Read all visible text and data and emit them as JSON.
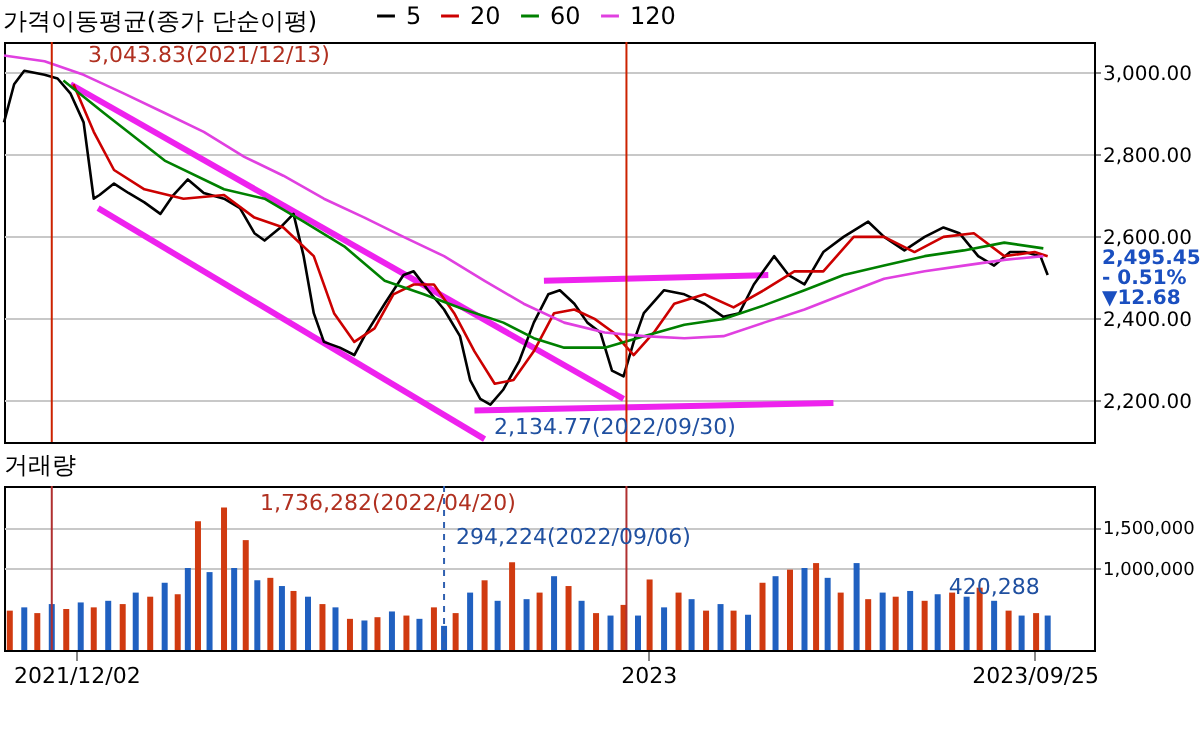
{
  "chart_data": [
    {
      "type": "line",
      "title": "가격이동평균(종가 단순이평)",
      "xlim": [
        "2021-10-13",
        "2023-11-05"
      ],
      "ylim": [
        2100,
        3075
      ],
      "yticks": [
        {
          "value": 2200,
          "label": "2,200.00"
        },
        {
          "value": 2400,
          "label": "2,400.00"
        },
        {
          "value": 2600,
          "label": "2,600.00"
        },
        {
          "value": 2800,
          "label": "2,800.00"
        },
        {
          "value": 3000,
          "label": "3,000.00"
        }
      ],
      "grid": "y",
      "legend": "top left",
      "tick_labels": "y",
      "ref_lines": [
        {
          "axis": "x",
          "value": "2021-11-15",
          "color": "#cc2200"
        },
        {
          "axis": "x",
          "value": "2022-12-17",
          "color": "#cc2200"
        }
      ],
      "annotations": [
        "3,043.83(2021/12/13)",
        "2,134.77(2022/09/30)",
        "2,495.45",
        "- 0.51%",
        "▼12.68"
      ],
      "series": [
        {
          "name": "5",
          "color": "#000000",
          "x": [
            "2021-10-13",
            "2021-10-20",
            "2021-10-27",
            "2021-11-10",
            "2021-11-19",
            "2021-11-28",
            "2021-12-07",
            "2021-12-14",
            "2021-12-18",
            "2021-12-28",
            "2022-01-07",
            "2022-01-18",
            "2022-01-29",
            "2022-02-07",
            "2022-02-17",
            "2022-02-28",
            "2022-03-14",
            "2022-03-25",
            "2022-04-04",
            "2022-04-11",
            "2022-04-22",
            "2022-05-01",
            "2022-05-08",
            "2022-05-15",
            "2022-05-22",
            "2022-06-02",
            "2022-06-12",
            "2022-06-19",
            "2022-07-03",
            "2022-07-16",
            "2022-07-23",
            "2022-08-02",
            "2022-08-13",
            "2022-08-24",
            "2022-08-31",
            "2022-09-07",
            "2022-09-14",
            "2022-09-23",
            "2022-10-04",
            "2022-10-14",
            "2022-10-24",
            "2022-11-01",
            "2022-11-11",
            "2022-11-20",
            "2022-11-29",
            "2022-12-07",
            "2022-12-15",
            "2022-12-22",
            "2022-12-29",
            "2023-01-12",
            "2023-01-26",
            "2023-02-09",
            "2023-02-22",
            "2023-03-05",
            "2023-03-15",
            "2023-03-29",
            "2023-04-08",
            "2023-04-19",
            "2023-05-02",
            "2023-05-16",
            "2023-06-02",
            "2023-06-13",
            "2023-06-27",
            "2023-07-11",
            "2023-07-24",
            "2023-08-04",
            "2023-08-17",
            "2023-08-28",
            "2023-09-08",
            "2023-09-18",
            "2023-09-29",
            "2023-10-04"
          ],
          "values": [
            2879,
            2972,
            3005,
            2995,
            2986,
            2949,
            2879,
            2693,
            2702,
            2730,
            2707,
            2684,
            2656,
            2702,
            2740,
            2707,
            2693,
            2670,
            2609,
            2591,
            2623,
            2656,
            2553,
            2414,
            2344,
            2330,
            2312,
            2358,
            2437,
            2507,
            2516,
            2470,
            2423,
            2358,
            2251,
            2205,
            2191,
            2228,
            2298,
            2391,
            2460,
            2470,
            2437,
            2391,
            2367,
            2274,
            2260,
            2344,
            2414,
            2470,
            2460,
            2437,
            2405,
            2414,
            2484,
            2553,
            2507,
            2484,
            2563,
            2600,
            2637,
            2600,
            2567,
            2600,
            2623,
            2609,
            2553,
            2530,
            2563,
            2563,
            2553,
            2507
          ]
        },
        {
          "name": "20",
          "color": "#cc0000",
          "x": [
            "2021-11-30",
            "2021-12-14",
            "2021-12-28",
            "2022-01-18",
            "2022-02-14",
            "2022-03-14",
            "2022-04-04",
            "2022-04-24",
            "2022-05-15",
            "2022-05-29",
            "2022-06-12",
            "2022-06-26",
            "2022-07-09",
            "2022-07-23",
            "2022-08-06",
            "2022-08-20",
            "2022-09-03",
            "2022-09-17",
            "2022-09-30",
            "2022-10-14",
            "2022-10-28",
            "2022-11-11",
            "2022-11-25",
            "2022-12-08",
            "2022-12-22",
            "2023-01-05",
            "2023-01-19",
            "2023-02-09",
            "2023-03-01",
            "2023-03-22",
            "2023-04-12",
            "2023-05-02",
            "2023-05-23",
            "2023-06-13",
            "2023-07-04",
            "2023-07-24",
            "2023-08-14",
            "2023-09-04",
            "2023-09-25",
            "2023-10-04"
          ],
          "values": [
            2972,
            2856,
            2763,
            2716,
            2693,
            2702,
            2647,
            2623,
            2553,
            2414,
            2344,
            2377,
            2460,
            2484,
            2484,
            2414,
            2321,
            2242,
            2251,
            2321,
            2414,
            2423,
            2400,
            2367,
            2312,
            2367,
            2437,
            2460,
            2428,
            2470,
            2516,
            2516,
            2600,
            2600,
            2563,
            2600,
            2609,
            2553,
            2563,
            2553
          ]
        },
        {
          "name": "60",
          "color": "#008000",
          "x": [
            "2021-11-23",
            "2021-12-21",
            "2022-02-01",
            "2022-03-14",
            "2022-04-11",
            "2022-05-08",
            "2022-06-05",
            "2022-07-03",
            "2022-07-30",
            "2022-08-27",
            "2022-09-23",
            "2022-10-14",
            "2022-11-04",
            "2022-12-02",
            "2022-12-29",
            "2023-01-26",
            "2023-02-22",
            "2023-03-22",
            "2023-04-19",
            "2023-05-16",
            "2023-06-13",
            "2023-07-11",
            "2023-08-07",
            "2023-09-04",
            "2023-10-01"
          ],
          "values": [
            2981,
            2902,
            2786,
            2716,
            2693,
            2637,
            2577,
            2493,
            2460,
            2423,
            2391,
            2353,
            2330,
            2330,
            2358,
            2386,
            2400,
            2433,
            2470,
            2507,
            2530,
            2553,
            2567,
            2586,
            2572
          ]
        },
        {
          "name": "120",
          "color": "#e040e0",
          "x": [
            "2021-10-13",
            "2021-11-10",
            "2021-12-07",
            "2022-01-04",
            "2022-02-01",
            "2022-02-28",
            "2022-03-28",
            "2022-04-24",
            "2022-05-22",
            "2022-06-19",
            "2022-07-16",
            "2022-08-13",
            "2022-09-10",
            "2022-10-07",
            "2022-11-04",
            "2022-12-02",
            "2022-12-29",
            "2023-01-26",
            "2023-02-22",
            "2023-03-22",
            "2023-04-19",
            "2023-05-16",
            "2023-06-13",
            "2023-07-11",
            "2023-08-07",
            "2023-09-04",
            "2023-10-01"
          ],
          "values": [
            3042,
            3028,
            2995,
            2949,
            2902,
            2856,
            2795,
            2749,
            2693,
            2647,
            2600,
            2553,
            2493,
            2437,
            2391,
            2367,
            2358,
            2353,
            2358,
            2391,
            2423,
            2460,
            2498,
            2516,
            2530,
            2544,
            2553
          ]
        },
        {
          "color": "#ee22ee",
          "x": [
            "2021-11-28",
            "2022-12-15"
          ],
          "values": [
            2972,
            2205
          ]
        },
        {
          "color": "#ee22ee",
          "x": [
            "2021-12-17",
            "2022-09-10"
          ],
          "values": [
            2670,
            2107
          ]
        },
        {
          "color": "#ee22ee",
          "x": [
            "2022-10-21",
            "2023-03-25"
          ],
          "values": [
            2493,
            2507
          ]
        },
        {
          "color": "#ee22ee",
          "x": [
            "2022-09-03",
            "2023-05-09"
          ],
          "values": [
            2177,
            2195
          ]
        }
      ]
    },
    {
      "type": "bar",
      "title": "거래량",
      "xlim": [
        "2021-10-13",
        "2023-11-05"
      ],
      "xticks": [
        {
          "value": "2021-12-02",
          "label": "2021/12/02"
        },
        {
          "value": "2023-01-01",
          "label": "2023"
        },
        {
          "value": "2023-09-25",
          "label": "2023/09/25"
        }
      ],
      "ylim": [
        0,
        2000000
      ],
      "yticks": [
        {
          "value": 1000000,
          "label": "1,000,000"
        },
        {
          "value": 1500000,
          "label": "1,500,000"
        }
      ],
      "grid": "y",
      "ref_lines": [
        {
          "axis": "x",
          "value": "2021-11-15",
          "color": "#b03030"
        },
        {
          "axis": "x",
          "value": "2022-12-17",
          "color": "#b03030"
        },
        {
          "axis": "x",
          "value": "2022-08-13",
          "color": "#3060b0",
          "line_style": "dashed"
        }
      ],
      "annotations": [
        "1,736,282(2022/04/20)",
        "294,224(2022/09/06)",
        {
          "text": "420,288",
          "x": "2023-10-04",
          "y": 420288
        }
      ],
      "x": [
        "2021-10-17",
        "2021-10-27",
        "2021-11-05",
        "2021-11-15",
        "2021-11-25",
        "2021-12-05",
        "2021-12-14",
        "2021-12-24",
        "2022-01-03",
        "2022-01-12",
        "2022-01-22",
        "2022-02-01",
        "2022-02-10",
        "2022-02-17",
        "2022-02-24",
        "2022-03-04",
        "2022-03-14",
        "2022-03-21",
        "2022-03-29",
        "2022-04-06",
        "2022-04-15",
        "2022-04-23",
        "2022-05-01",
        "2022-05-11",
        "2022-05-21",
        "2022-05-30",
        "2022-06-09",
        "2022-06-19",
        "2022-06-28",
        "2022-07-08",
        "2022-07-18",
        "2022-07-27",
        "2022-08-06",
        "2022-08-13",
        "2022-08-21",
        "2022-08-31",
        "2022-09-10",
        "2022-09-19",
        "2022-09-29",
        "2022-10-09",
        "2022-10-18",
        "2022-10-28",
        "2022-11-07",
        "2022-11-16",
        "2022-11-26",
        "2022-12-06",
        "2022-12-15",
        "2022-12-25",
        "2023-01-02",
        "2023-01-12",
        "2023-01-22",
        "2023-01-31",
        "2023-02-10",
        "2023-02-20",
        "2023-03-01",
        "2023-03-11",
        "2023-03-21",
        "2023-03-30",
        "2023-04-09",
        "2023-04-19",
        "2023-04-27",
        "2023-05-05",
        "2023-05-14",
        "2023-05-25",
        "2023-06-02",
        "2023-06-12",
        "2023-06-21",
        "2023-07-01",
        "2023-07-11",
        "2023-07-20",
        "2023-07-30",
        "2023-08-09",
        "2023-08-18",
        "2023-08-28",
        "2023-09-07",
        "2023-09-16",
        "2023-09-26",
        "2023-10-04"
      ],
      "values": [
        480000,
        520000,
        450000,
        560000,
        500000,
        580000,
        520000,
        600000,
        560000,
        700000,
        650000,
        820000,
        680000,
        1000000,
        1570000,
        950000,
        1736282,
        1000000,
        1340000,
        850000,
        880000,
        780000,
        720000,
        650000,
        560000,
        520000,
        380000,
        360000,
        400000,
        470000,
        420000,
        380000,
        520000,
        294224,
        450000,
        700000,
        850000,
        600000,
        1070000,
        620000,
        700000,
        900000,
        780000,
        600000,
        450000,
        420000,
        550000,
        420000,
        860000,
        520000,
        700000,
        620000,
        480000,
        560000,
        480000,
        430000,
        820000,
        900000,
        980000,
        1000000,
        1060000,
        880000,
        700000,
        1060000,
        620000,
        700000,
        650000,
        720000,
        600000,
        680000,
        700000,
        650000,
        760000,
        600000,
        480000,
        420000,
        450000,
        420288
      ],
      "colors": [
        "#d03a10",
        "#2060c0",
        "#d03a10",
        "#2060c0",
        "#d03a10",
        "#2060c0",
        "#d03a10",
        "#2060c0",
        "#d03a10",
        "#2060c0",
        "#d03a10",
        "#2060c0",
        "#d03a10",
        "#2060c0",
        "#d03a10",
        "#2060c0",
        "#d03a10",
        "#2060c0",
        "#d03a10",
        "#2060c0",
        "#d03a10",
        "#2060c0",
        "#d03a10",
        "#2060c0",
        "#d03a10",
        "#2060c0",
        "#d03a10",
        "#2060c0",
        "#d03a10",
        "#2060c0",
        "#d03a10",
        "#2060c0",
        "#d03a10",
        "#2060c0",
        "#d03a10",
        "#2060c0",
        "#d03a10",
        "#2060c0",
        "#d03a10",
        "#2060c0",
        "#d03a10",
        "#2060c0",
        "#d03a10",
        "#2060c0",
        "#d03a10",
        "#2060c0",
        "#d03a10",
        "#2060c0",
        "#d03a10",
        "#2060c0",
        "#d03a10",
        "#2060c0",
        "#d03a10",
        "#2060c0",
        "#d03a10",
        "#2060c0",
        "#d03a10",
        "#2060c0",
        "#d03a10",
        "#2060c0",
        "#d03a10",
        "#2060c0",
        "#d03a10",
        "#2060c0",
        "#d03a10",
        "#2060c0",
        "#d03a10",
        "#2060c0",
        "#d03a10",
        "#2060c0",
        "#d03a10",
        "#2060c0",
        "#d03a10",
        "#2060c0",
        "#d03a10",
        "#2060c0",
        "#d03a10",
        "#2060c0"
      ]
    }
  ]
}
